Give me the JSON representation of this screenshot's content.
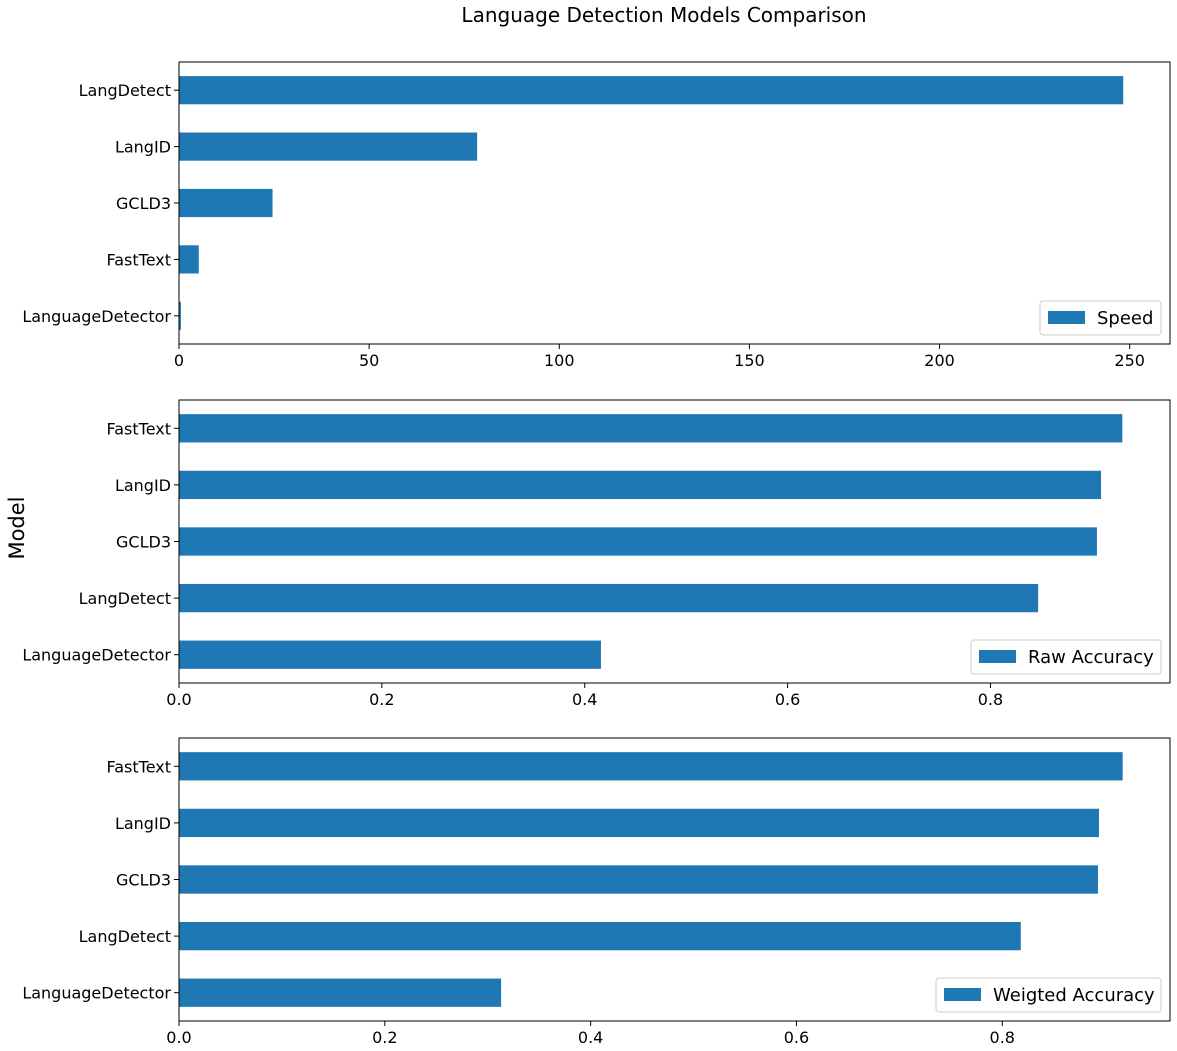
{
  "figure": {
    "title": "Language Detection Models Comparison",
    "shared_ylabel": "Model"
  },
  "chart_data": [
    {
      "type": "bar",
      "orientation": "horizontal",
      "categories": [
        "LangDetect",
        "LangID",
        "GCLD3",
        "FastText",
        "LanguageDetector"
      ],
      "series": [
        {
          "name": "Speed",
          "values": [
            248.3,
            78.4,
            24.6,
            5.2,
            0.5
          ]
        }
      ],
      "xlim": [
        0,
        260.6
      ],
      "xticks": [
        0,
        50,
        100,
        150,
        200,
        250
      ],
      "xtick_labels": [
        "0",
        "50",
        "100",
        "150",
        "200",
        "250"
      ],
      "legend": "lower-right",
      "color": "#1f77b4"
    },
    {
      "type": "bar",
      "orientation": "horizontal",
      "categories": [
        "FastText",
        "LangID",
        "GCLD3",
        "LangDetect",
        "LanguageDetector"
      ],
      "series": [
        {
          "name": "Raw Accuracy",
          "values": [
            0.93,
            0.909,
            0.905,
            0.847,
            0.416
          ]
        }
      ],
      "xlim": [
        0,
        0.977
      ],
      "xticks": [
        0,
        0.2,
        0.4,
        0.6,
        0.8
      ],
      "xtick_labels": [
        "0.0",
        "0.2",
        "0.4",
        "0.6",
        "0.8"
      ],
      "legend": "lower-right",
      "color": "#1f77b4"
    },
    {
      "type": "bar",
      "orientation": "horizontal",
      "categories": [
        "FastText",
        "LangID",
        "GCLD3",
        "LangDetect",
        "LanguageDetector"
      ],
      "series": [
        {
          "name": "Weigted Accuracy",
          "values": [
            0.917,
            0.894,
            0.893,
            0.818,
            0.313
          ]
        }
      ],
      "xlim": [
        0,
        0.963
      ],
      "xticks": [
        0,
        0.2,
        0.4,
        0.6,
        0.8
      ],
      "xtick_labels": [
        "0.0",
        "0.2",
        "0.4",
        "0.6",
        "0.8"
      ],
      "legend": "lower-right",
      "color": "#1f77b4"
    }
  ]
}
